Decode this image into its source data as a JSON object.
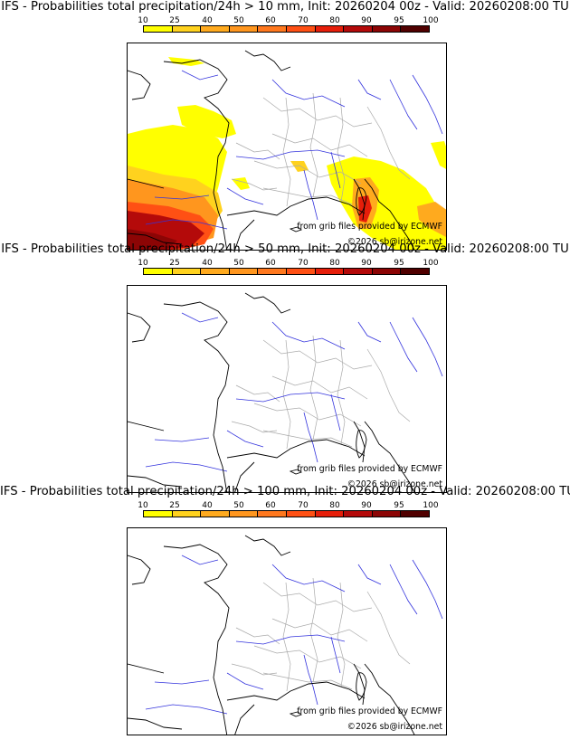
{
  "panels": [
    {
      "title": "IFS - Probabilities total precipitation/24h > 10 mm, Init: 20260204 00z - Valid: 20260208:00 TU",
      "has_shading": true
    },
    {
      "title": "IFS - Probabilities total precipitation/24h > 50 mm, Init: 20260204 00z - Valid: 20260208:00 TU",
      "has_shading": false
    },
    {
      "title": "IFS - Probabilities total precipitation/24h > 100 mm, Init: 20260204 00z - Valid: 20260208:00 TU",
      "has_shading": false
    }
  ],
  "colorbar": {
    "ticks": [
      "10",
      "25",
      "40",
      "50",
      "60",
      "70",
      "80",
      "90",
      "95",
      "100"
    ],
    "colors": [
      "#ffff00",
      "#ffd21e",
      "#ffaa1e",
      "#ff961e",
      "#ff781e",
      "#ff5014",
      "#e61e0a",
      "#b40a0a",
      "#8c0505",
      "#500000"
    ]
  },
  "credits": {
    "source": "from grib files provided by ECMWF",
    "copyright": "©2026 sb@irizone.net"
  },
  "colors": {
    "coastline": "#000000",
    "rivers": "#3333dd",
    "borders": "#aaaaaa"
  }
}
